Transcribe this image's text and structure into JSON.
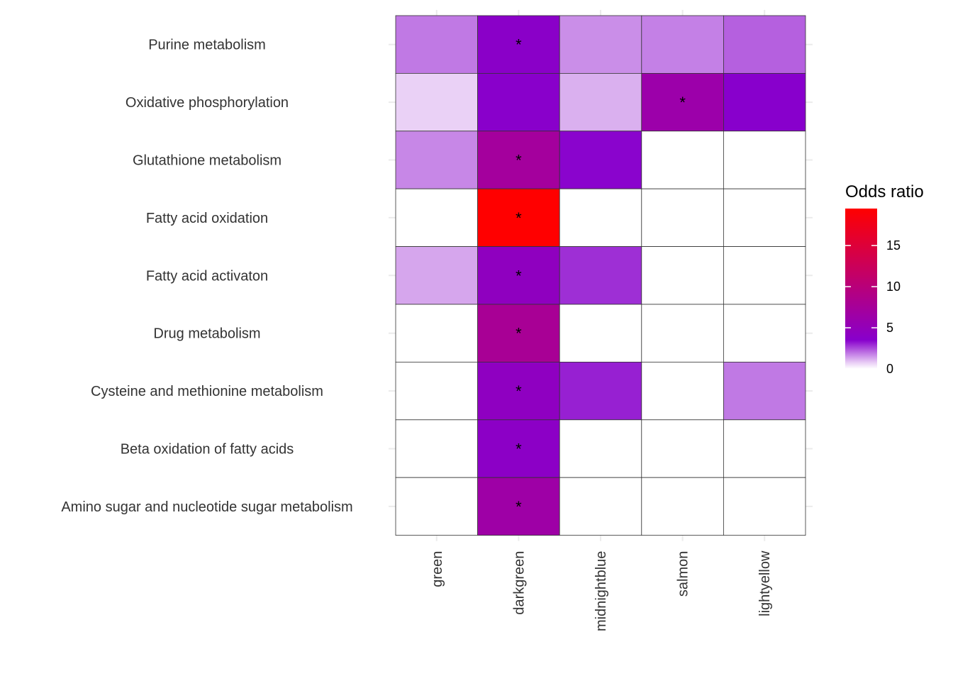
{
  "chart_data": {
    "type": "heatmap",
    "title": "",
    "xlabel": "",
    "ylabel": "",
    "columns": [
      "green",
      "darkgreen",
      "midnightblue",
      "salmon",
      "lightyellow"
    ],
    "rows": [
      "Purine metabolism",
      "Oxidative phosphorylation",
      "Glutathione metabolism",
      "Fatty acid oxidation",
      "Fatty acid activaton",
      "Drug metabolism",
      "Cysteine and methionine metabolism",
      "Beta oxidation of fatty acids",
      "Amino sugar and nucleotide sugar metabolism"
    ],
    "values": [
      [
        1.2,
        3.8,
        0.9,
        1.1,
        1.6
      ],
      [
        0.2,
        3.6,
        0.5,
        6.2,
        3.5
      ],
      [
        1.0,
        7.2,
        3.4,
        null,
        null
      ],
      [
        null,
        19.5,
        null,
        null,
        null
      ],
      [
        0.6,
        4.5,
        2.5,
        null,
        null
      ],
      [
        null,
        7.8,
        null,
        null,
        null
      ],
      [
        null,
        4.4,
        2.8,
        null,
        1.2
      ],
      [
        null,
        4.0,
        null,
        null,
        null
      ],
      [
        null,
        6.5,
        null,
        null,
        null
      ]
    ],
    "significant": [
      [
        false,
        true,
        false,
        false,
        false
      ],
      [
        false,
        false,
        false,
        true,
        false
      ],
      [
        false,
        true,
        false,
        false,
        false
      ],
      [
        false,
        true,
        false,
        false,
        false
      ],
      [
        false,
        true,
        false,
        false,
        false
      ],
      [
        false,
        true,
        false,
        false,
        false
      ],
      [
        false,
        true,
        false,
        false,
        false
      ],
      [
        false,
        true,
        false,
        false,
        false
      ],
      [
        false,
        true,
        false,
        false,
        false
      ]
    ],
    "significance_marker": "*",
    "legend": {
      "title": "Odds ratio",
      "ticks": [
        0,
        5,
        10,
        15
      ],
      "range": [
        0,
        19.5
      ],
      "colors": [
        "#ffffff",
        "#8800cc",
        "#ff0000"
      ],
      "placement": "right"
    },
    "grid": true
  }
}
